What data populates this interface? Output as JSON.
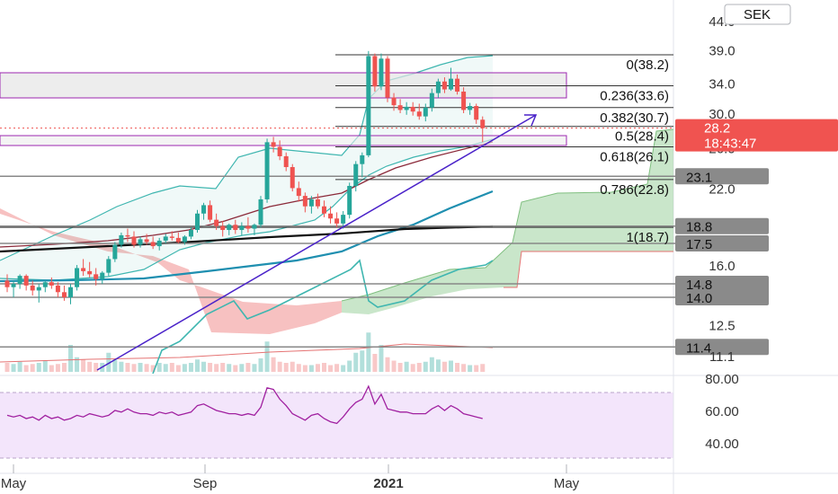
{
  "currency_button": "SEK",
  "colors": {
    "up": "#26a69a",
    "down": "#ef5350",
    "fib_line": "#333333",
    "horizontal_level": "#888888",
    "price_tag_bg": "#8a8a8a",
    "current_price_bg": "#f05350",
    "trendline": "#4a22c9",
    "rectangle": "#9c27b0",
    "bollinger": "#3fb6b0",
    "ema_fast": "#8b2a3a",
    "ema_mid": "#1f8fb0",
    "ema_slow": "#111111",
    "cloud_bull": "#a5d6a7",
    "cloud_bear": "#f4a6a6",
    "rsi_line": "#a020a0",
    "rsi_band": "#f3e5fb"
  },
  "chart_data": [
    {
      "type": "candlestick",
      "price_axis": {
        "scale": "log",
        "ticks": [
          "44.0",
          "39.0",
          "34.0",
          "30.0",
          "26.0",
          "22.0",
          "16.0",
          "12.5",
          "11.1"
        ]
      },
      "time_axis": {
        "labels": [
          {
            "text": "May",
            "bold": false
          },
          {
            "text": "Sep",
            "bold": false
          },
          {
            "text": "2021",
            "bold": true
          },
          {
            "text": "May",
            "bold": false
          }
        ]
      },
      "current_price": {
        "price": "28.2",
        "countdown": "18:43:47",
        "value": 28.2
      },
      "price_levels": [
        {
          "label": "23.1",
          "value": 23.1
        },
        {
          "label": "18.8",
          "value": 18.8
        },
        {
          "label": "17.5",
          "value": 17.5
        },
        {
          "label": "14.8",
          "value": 14.8
        },
        {
          "label": "14.0",
          "value": 14.0
        },
        {
          "label": "11.4",
          "value": 11.4
        }
      ],
      "fibonacci": [
        {
          "label": "0(38.2)",
          "value": 38.2
        },
        {
          "label": "0.236(33.6)",
          "value": 33.6
        },
        {
          "label": "0.382(30.7)",
          "value": 30.7
        },
        {
          "label": "0.5(28.4)",
          "value": 28.4
        },
        {
          "label": "0.618(26.1)",
          "value": 26.1
        },
        {
          "label": "0.786(22.8)",
          "value": 22.8
        },
        {
          "label": "1(18.7)",
          "value": 18.7
        }
      ],
      "candles": [
        [
          15.0,
          15.4,
          14.3,
          14.6
        ],
        [
          14.6,
          15.0,
          14.0,
          14.8
        ],
        [
          14.8,
          15.4,
          14.5,
          15.3
        ],
        [
          15.3,
          15.4,
          14.4,
          14.7
        ],
        [
          14.7,
          15.0,
          14.1,
          14.4
        ],
        [
          14.4,
          14.8,
          13.7,
          14.6
        ],
        [
          14.6,
          15.0,
          14.3,
          14.9
        ],
        [
          14.9,
          15.2,
          14.5,
          14.7
        ],
        [
          14.7,
          14.9,
          14.0,
          14.3
        ],
        [
          14.3,
          14.7,
          13.8,
          14.0
        ],
        [
          14.0,
          14.8,
          13.6,
          14.6
        ],
        [
          14.6,
          16.0,
          14.4,
          15.8
        ],
        [
          15.8,
          16.4,
          15.3,
          15.6
        ],
        [
          15.6,
          16.2,
          15.2,
          15.4
        ],
        [
          15.4,
          15.8,
          14.7,
          15.1
        ],
        [
          15.1,
          15.6,
          14.8,
          15.5
        ],
        [
          15.5,
          16.6,
          15.3,
          16.4
        ],
        [
          16.4,
          17.6,
          16.2,
          17.4
        ],
        [
          17.4,
          18.3,
          17.2,
          18.1
        ],
        [
          18.1,
          18.6,
          17.6,
          18.0
        ],
        [
          18.0,
          18.4,
          17.2,
          17.4
        ],
        [
          17.4,
          18.0,
          17.2,
          17.8
        ],
        [
          17.8,
          18.2,
          17.4,
          17.6
        ],
        [
          17.6,
          18.0,
          17.1,
          17.3
        ],
        [
          17.3,
          17.9,
          17.0,
          17.7
        ],
        [
          17.7,
          18.2,
          17.5,
          18.0
        ],
        [
          18.0,
          18.4,
          17.7,
          17.9
        ],
        [
          17.9,
          18.3,
          17.5,
          17.6
        ],
        [
          17.6,
          18.1,
          17.4,
          18.0
        ],
        [
          18.0,
          18.7,
          17.8,
          18.5
        ],
        [
          18.5,
          20.1,
          18.3,
          19.8
        ],
        [
          19.8,
          20.7,
          19.3,
          20.5
        ],
        [
          20.5,
          20.9,
          19.1,
          19.3
        ],
        [
          19.3,
          19.8,
          18.5,
          18.8
        ],
        [
          18.8,
          19.2,
          18.0,
          18.5
        ],
        [
          18.5,
          19.0,
          18.1,
          18.9
        ],
        [
          18.9,
          19.3,
          18.2,
          18.5
        ],
        [
          18.5,
          19.1,
          18.1,
          18.8
        ],
        [
          18.8,
          19.5,
          18.3,
          18.6
        ],
        [
          18.6,
          19.0,
          18.1,
          18.9
        ],
        [
          18.9,
          21.3,
          18.7,
          21.0
        ],
        [
          21.0,
          27.0,
          20.7,
          26.6
        ],
        [
          26.6,
          27.2,
          25.5,
          26.1
        ],
        [
          26.1,
          26.8,
          24.7,
          25.1
        ],
        [
          25.1,
          25.5,
          23.6,
          24.0
        ],
        [
          24.0,
          24.3,
          21.7,
          22.0
        ],
        [
          22.0,
          22.6,
          20.8,
          21.3
        ],
        [
          21.3,
          21.6,
          19.9,
          20.4
        ],
        [
          20.4,
          21.3,
          19.8,
          21.0
        ],
        [
          21.0,
          21.5,
          20.2,
          20.4
        ],
        [
          20.4,
          20.9,
          19.5,
          19.8
        ],
        [
          19.8,
          20.4,
          19.0,
          19.4
        ],
        [
          19.4,
          19.9,
          18.7,
          19.0
        ],
        [
          19.0,
          20.0,
          18.6,
          19.7
        ],
        [
          19.7,
          22.5,
          19.4,
          22.2
        ],
        [
          22.2,
          24.6,
          21.7,
          24.3
        ],
        [
          24.3,
          25.5,
          23.0,
          25.2
        ],
        [
          25.2,
          38.8,
          25.0,
          38.0
        ],
        [
          38.0,
          38.4,
          32.8,
          33.5
        ],
        [
          33.5,
          38.4,
          33.0,
          37.6
        ],
        [
          37.6,
          38.0,
          31.4,
          32.0
        ],
        [
          32.0,
          32.6,
          30.3,
          31.0
        ],
        [
          31.0,
          31.8,
          30.0,
          30.4
        ],
        [
          30.4,
          31.4,
          29.8,
          30.8
        ],
        [
          30.8,
          31.4,
          29.7,
          30.2
        ],
        [
          30.2,
          31.2,
          29.2,
          29.6
        ],
        [
          29.6,
          31.2,
          29.0,
          30.7
        ],
        [
          30.7,
          33.2,
          30.2,
          32.6
        ],
        [
          32.6,
          34.6,
          32.0,
          34.2
        ],
        [
          34.2,
          34.8,
          32.6,
          33.1
        ],
        [
          33.1,
          36.2,
          32.9,
          34.6
        ],
        [
          34.6,
          35.2,
          32.4,
          32.8
        ],
        [
          32.8,
          33.4,
          30.0,
          30.4
        ],
        [
          30.4,
          31.3,
          29.8,
          30.9
        ],
        [
          30.9,
          31.2,
          28.7,
          29.2
        ],
        [
          29.2,
          29.6,
          26.6,
          28.2
        ]
      ],
      "volume": [
        8,
        7,
        9,
        6,
        7,
        8,
        10,
        6,
        7,
        8,
        24,
        13,
        11,
        9,
        8,
        8,
        17,
        11,
        9,
        8,
        7,
        8,
        7,
        6,
        8,
        7,
        8,
        6,
        7,
        8,
        11,
        9,
        8,
        7,
        8,
        7,
        6,
        7,
        8,
        7,
        12,
        27,
        13,
        9,
        8,
        9,
        7,
        6,
        6,
        7,
        8,
        6,
        7,
        6,
        10,
        17,
        19,
        35,
        16,
        24,
        13,
        10,
        8,
        9,
        7,
        8,
        9,
        13,
        11,
        9,
        10,
        8,
        7,
        6,
        6,
        7
      ],
      "rsi": {
        "ticks": [
          "80.00",
          "60.00",
          "40.00"
        ],
        "values": [
          57,
          56,
          57,
          55,
          56,
          54,
          57,
          55,
          56,
          54,
          55,
          57,
          56,
          58,
          57,
          56,
          57,
          60,
          59,
          61,
          59,
          58,
          58,
          57,
          59,
          58,
          59,
          57,
          58,
          59,
          63,
          64,
          62,
          60,
          59,
          58,
          58,
          57,
          58,
          57,
          62,
          74,
          73,
          67,
          63,
          58,
          56,
          54,
          57,
          58,
          55,
          53,
          52,
          56,
          61,
          65,
          67,
          75,
          64,
          70,
          61,
          60,
          59,
          59,
          58,
          58,
          58,
          61,
          63,
          60,
          63,
          61,
          58,
          57,
          56,
          55
        ]
      }
    }
  ]
}
